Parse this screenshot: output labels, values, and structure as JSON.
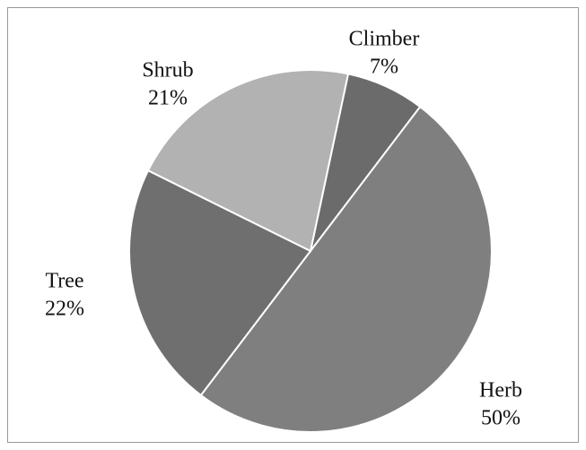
{
  "chart_data": {
    "type": "pie",
    "categories": [
      "Climber",
      "Herb",
      "Tree",
      "Shrub"
    ],
    "values": [
      7,
      50,
      22,
      21
    ],
    "value_labels": [
      "7%",
      "50%",
      "22%",
      "21%"
    ],
    "colors": [
      "#6b6b6b",
      "#7f7f7f",
      "#6f6f6f",
      "#b2b2b2"
    ]
  }
}
